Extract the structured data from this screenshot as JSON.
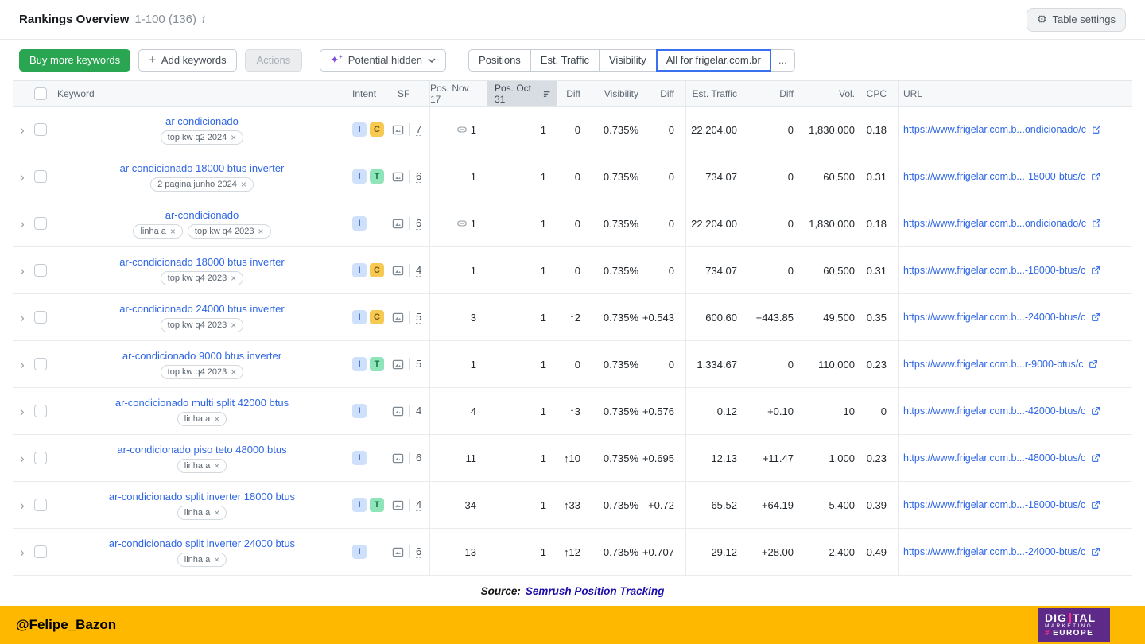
{
  "header": {
    "title": "Rankings Overview",
    "range": "1-100 (136)",
    "info_icon": "i",
    "table_settings_label": "Table settings"
  },
  "toolbar": {
    "buy_button": "Buy more keywords",
    "add_button": "Add keywords",
    "actions_button": "Actions",
    "potential_dropdown": "Potential hidden",
    "tabs": [
      "Positions",
      "Est. Traffic",
      "Visibility",
      "All for frigelar.com.br",
      "..."
    ]
  },
  "table": {
    "cols": {
      "keyword": "Keyword",
      "intent": "Intent",
      "sf": "SF",
      "pos_a": "Pos. Nov 17",
      "pos_b": "Pos. Oct 31",
      "diff1": "Diff",
      "visibility": "Visibility",
      "diff2": "Diff",
      "est_traffic": "Est. Traffic",
      "diff3": "Diff",
      "vol": "Vol.",
      "cpc": "CPC",
      "url": "URL"
    },
    "rows": [
      {
        "keyword": "ar condicionado",
        "tags": [
          "top kw q2 2024"
        ],
        "intents": [
          "I",
          "C"
        ],
        "sf": "7",
        "pos_link": true,
        "pos_a": "1",
        "pos_b": "1",
        "diff1": "0",
        "visibility": "0.735%",
        "diff2": "0",
        "est_traffic": "22,204.00",
        "diff3": "0",
        "vol": "1,830,000",
        "cpc": "0.18",
        "url": "https://www.frigelar.com.b...ondicionado/c"
      },
      {
        "keyword": "ar condicionado 18000 btus inverter",
        "tags": [
          "2 pagina junho 2024"
        ],
        "intents": [
          "I",
          "T"
        ],
        "sf": "6",
        "pos_link": false,
        "pos_a": "1",
        "pos_b": "1",
        "diff1": "0",
        "visibility": "0.735%",
        "diff2": "0",
        "est_traffic": "734.07",
        "diff3": "0",
        "vol": "60,500",
        "cpc": "0.31",
        "url": "https://www.frigelar.com.b...-18000-btus/c"
      },
      {
        "keyword": "ar-condicionado",
        "tags": [
          "linha a",
          "top kw q4 2023"
        ],
        "intents": [
          "I"
        ],
        "sf": "6",
        "pos_link": true,
        "pos_a": "1",
        "pos_b": "1",
        "diff1": "0",
        "visibility": "0.735%",
        "diff2": "0",
        "est_traffic": "22,204.00",
        "diff3": "0",
        "vol": "1,830,000",
        "cpc": "0.18",
        "url": "https://www.frigelar.com.b...ondicionado/c"
      },
      {
        "keyword": "ar-condicionado 18000 btus inverter",
        "tags": [
          "top kw q4 2023"
        ],
        "intents": [
          "I",
          "C"
        ],
        "sf": "4",
        "pos_link": false,
        "pos_a": "1",
        "pos_b": "1",
        "diff1": "0",
        "visibility": "0.735%",
        "diff2": "0",
        "est_traffic": "734.07",
        "diff3": "0",
        "vol": "60,500",
        "cpc": "0.31",
        "url": "https://www.frigelar.com.b...-18000-btus/c"
      },
      {
        "keyword": "ar-condicionado 24000 btus inverter",
        "tags": [
          "top kw q4 2023"
        ],
        "intents": [
          "I",
          "C"
        ],
        "sf": "5",
        "pos_link": false,
        "pos_a": "3",
        "pos_b": "1",
        "diff1": "↑2",
        "visibility": "0.735%",
        "diff2": "+0.543",
        "est_traffic": "600.60",
        "diff3": "+443.85",
        "vol": "49,500",
        "cpc": "0.35",
        "url": "https://www.frigelar.com.b...-24000-btus/c"
      },
      {
        "keyword": "ar-condicionado 9000 btus inverter",
        "tags": [
          "top kw q4 2023"
        ],
        "intents": [
          "I",
          "T"
        ],
        "sf": "5",
        "pos_link": false,
        "pos_a": "1",
        "pos_b": "1",
        "diff1": "0",
        "visibility": "0.735%",
        "diff2": "0",
        "est_traffic": "1,334.67",
        "diff3": "0",
        "vol": "110,000",
        "cpc": "0.23",
        "url": "https://www.frigelar.com.b...r-9000-btus/c"
      },
      {
        "keyword": "ar-condicionado multi split 42000 btus",
        "tags": [
          "linha a"
        ],
        "intents": [
          "I"
        ],
        "sf": "4",
        "pos_link": false,
        "pos_a": "4",
        "pos_b": "1",
        "diff1": "↑3",
        "visibility": "0.735%",
        "diff2": "+0.576",
        "est_traffic": "0.12",
        "diff3": "+0.10",
        "vol": "10",
        "cpc": "0",
        "url": "https://www.frigelar.com.b...-42000-btus/c"
      },
      {
        "keyword": "ar-condicionado piso teto 48000 btus",
        "tags": [
          "linha a"
        ],
        "intents": [
          "I"
        ],
        "sf": "6",
        "pos_link": false,
        "pos_a": "11",
        "pos_b": "1",
        "diff1": "↑10",
        "visibility": "0.735%",
        "diff2": "+0.695",
        "est_traffic": "12.13",
        "diff3": "+11.47",
        "vol": "1,000",
        "cpc": "0.23",
        "url": "https://www.frigelar.com.b...-48000-btus/c"
      },
      {
        "keyword": "ar-condicionado split inverter 18000 btus",
        "tags": [
          "linha a"
        ],
        "intents": [
          "I",
          "T"
        ],
        "sf": "4",
        "pos_link": false,
        "pos_a": "34",
        "pos_b": "1",
        "diff1": "↑33",
        "visibility": "0.735%",
        "diff2": "+0.72",
        "est_traffic": "65.52",
        "diff3": "+64.19",
        "vol": "5,400",
        "cpc": "0.39",
        "url": "https://www.frigelar.com.b...-18000-btus/c"
      },
      {
        "keyword": "ar-condicionado split inverter 24000 btus",
        "tags": [
          "linha a"
        ],
        "intents": [
          "I"
        ],
        "sf": "6",
        "pos_link": false,
        "pos_a": "13",
        "pos_b": "1",
        "diff1": "↑12",
        "visibility": "0.735%",
        "diff2": "+0.707",
        "est_traffic": "29.12",
        "diff3": "+28.00",
        "vol": "2,400",
        "cpc": "0.49",
        "url": "https://www.frigelar.com.b...-24000-btus/c"
      }
    ]
  },
  "footer": {
    "source_label": "Source:",
    "source_link": "Semrush Position Tracking"
  },
  "bottom_bar": {
    "credit": "@Felipe_Bazon",
    "logo_line1a": "DIG",
    "logo_line1b": "TAL",
    "logo_line2": "MARKETING",
    "logo_hash": "#",
    "logo_line3": "EUROPE"
  },
  "colors": {
    "accent_green": "#2aa551",
    "link_blue": "#2e66e5",
    "diff_green": "#0d9f6f",
    "bottom_bar_gold": "#ffb800",
    "logo_purple": "#5d2b87",
    "logo_pink": "#ff2d8d"
  }
}
